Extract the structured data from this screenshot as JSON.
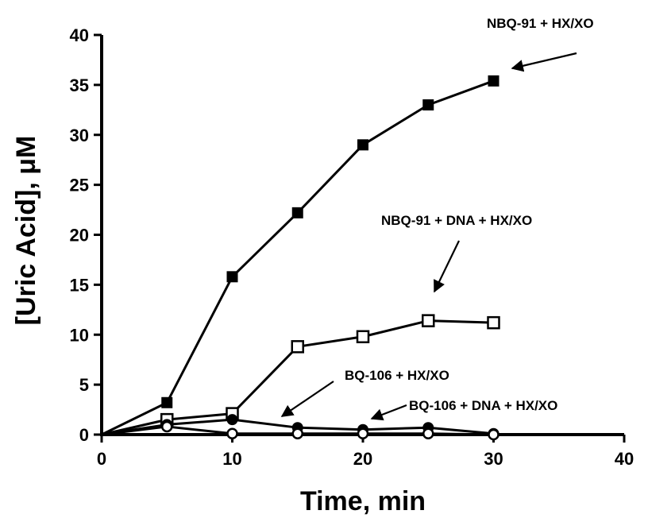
{
  "chart_data": {
    "type": "line",
    "xlabel": "Time, min",
    "ylabel": "[Uric Acid], μM",
    "xlim": [
      0,
      40
    ],
    "ylim": [
      0,
      40
    ],
    "xticks": [
      "0",
      "10",
      "20",
      "30",
      "40"
    ],
    "yticks": [
      "0",
      "5",
      "10",
      "15",
      "20",
      "25",
      "30",
      "35",
      "40"
    ],
    "grid": false,
    "series": [
      {
        "name": "NBQ-91 + HX/XO",
        "marker": "filled-square",
        "color": "#000000",
        "x": [
          0,
          5,
          10,
          15,
          20,
          25,
          30
        ],
        "y": [
          0,
          3.2,
          15.8,
          22.2,
          29.0,
          33.0,
          35.4
        ]
      },
      {
        "name": "NBQ-91 + DNA + HX/XO",
        "marker": "open-square",
        "color": "#000000",
        "x": [
          0,
          5,
          10,
          15,
          20,
          25,
          30
        ],
        "y": [
          0,
          1.5,
          2.1,
          8.8,
          9.8,
          11.4,
          11.2
        ]
      },
      {
        "name": "BQ-106 + HX/XO",
        "marker": "filled-circle",
        "color": "#000000",
        "x": [
          0,
          5,
          10,
          15,
          20,
          25,
          30
        ],
        "y": [
          0,
          1.0,
          1.5,
          0.7,
          0.5,
          0.7,
          0.1
        ]
      },
      {
        "name": "BQ-106 + DNA + HX/XO",
        "marker": "open-circle",
        "color": "#000000",
        "x": [
          0,
          5,
          10,
          15,
          20,
          25,
          30
        ],
        "y": [
          0,
          0.8,
          0.1,
          0.1,
          0.1,
          0.1,
          0.0
        ]
      }
    ],
    "annotations": [
      "NBQ-91 + HX/XO",
      "NBQ-91 + DNA + HX/XO",
      "BQ-106 + HX/XO",
      "BQ-106 + DNA + HX/XO"
    ]
  }
}
